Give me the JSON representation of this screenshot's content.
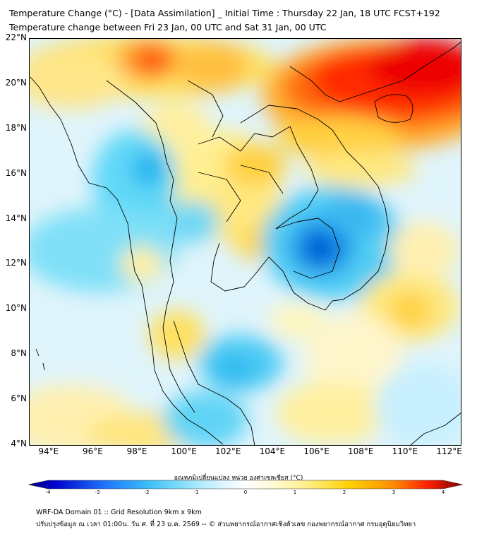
{
  "header": {
    "title_line1": "Temperature Change (°C) - [Data Assimilation] _ Initial Time : Thursday 22 Jan, 18 UTC FCST+192",
    "title_line2": "Temperature change between Fri 23 Jan, 00 UTC and Sat 31 Jan, 00 UTC"
  },
  "map": {
    "lat_labels": [
      "22°N",
      "20°N",
      "18°N",
      "16°N",
      "14°N",
      "12°N",
      "10°N",
      "8°N",
      "6°N",
      "4°N"
    ],
    "lon_labels": [
      "94°E",
      "96°E",
      "98°E",
      "100°E",
      "102°E",
      "104°E",
      "106°E",
      "108°E",
      "110°E",
      "112°E"
    ],
    "lat_range": [
      4,
      22
    ],
    "lon_range": [
      93,
      112.5
    ]
  },
  "colorbar": {
    "title": "อุณหภูมิเปลี่ยนแปลง หน่วย องศาเซลเซียส (°C)",
    "ticks": [
      "-4",
      "-3",
      "-2",
      "-1",
      "0",
      "1",
      "2",
      "3",
      "4"
    ],
    "range": [
      -4,
      4
    ],
    "colors": [
      "#00008b",
      "#0000ff",
      "#1e90ff",
      "#40d0f0",
      "#c8f0ff",
      "#ffffff",
      "#fff5a0",
      "#ffd700",
      "#ff8c00",
      "#ff0000",
      "#8b0000"
    ]
  },
  "footer": {
    "line1": "WRF-DA Domain 01 :: Grid Resolution 9km x 9km",
    "line2": "ปรับปรุงข้อมูล ณ เวลา 01:00น. วัน ศ. ที่ 23 ม.ค. 2569 -- © ส่วนพยากรณ์อากาศเชิงตัวเลข กองพยากรณ์อากาศ กรมอุตุนิยมวิทยา"
  }
}
